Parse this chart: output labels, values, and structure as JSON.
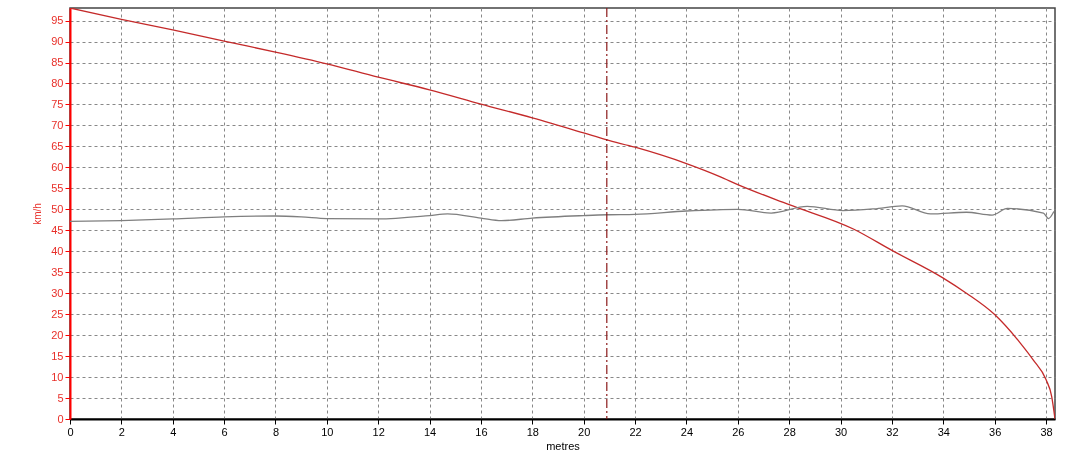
{
  "chart_data": {
    "type": "line",
    "xlabel": "metres",
    "ylabel": "km/h",
    "xlim": [
      0,
      38.35
    ],
    "ylim": [
      0,
      98
    ],
    "xticks": [
      0,
      2,
      4,
      6,
      8,
      10,
      12,
      14,
      16,
      18,
      20,
      22,
      24,
      26,
      28,
      30,
      32,
      34,
      36,
      38
    ],
    "yticks": [
      0,
      5,
      10,
      15,
      20,
      25,
      30,
      35,
      40,
      45,
      50,
      55,
      60,
      65,
      70,
      75,
      80,
      85,
      90,
      95
    ],
    "grid": true,
    "series": [
      {
        "color": "#c42a2a",
        "x": [
          0,
          2,
          4,
          6,
          8,
          10,
          12,
          14,
          16,
          18,
          20,
          20.87,
          22,
          24,
          25.3,
          26,
          28,
          30.5,
          32,
          34,
          34.9,
          36,
          37,
          37.5,
          38,
          38.22,
          38.35
        ],
        "values": [
          98,
          95.3,
          92.8,
          90.1,
          87.5,
          84.7,
          81.5,
          78.5,
          75.1,
          71.8,
          68.2,
          66.6,
          64.8,
          60.9,
          57.8,
          55.9,
          51.1,
          45.3,
          40.2,
          33.6,
          30,
          24.9,
          18.1,
          14.1,
          9.4,
          5.4,
          0
        ]
      },
      {
        "color": "#7f7f7f",
        "x": [
          0,
          2,
          4,
          6,
          8,
          9,
          10,
          12,
          14,
          14.7,
          16,
          16.8,
          18,
          20,
          20.9,
          22,
          24,
          26,
          27.3,
          28.7,
          30.1,
          31.3,
          32.4,
          33.5,
          34.9,
          35.9,
          36.5,
          37.9,
          38.1,
          38.3
        ],
        "values": [
          47.1,
          47.3,
          47.7,
          48.2,
          48.4,
          48.2,
          47.8,
          47.7,
          48.5,
          48.9,
          47.9,
          47.3,
          47.9,
          48.5,
          48.7,
          48.8,
          49.6,
          50,
          49.1,
          50.7,
          49.7,
          50.1,
          50.8,
          48.9,
          49.3,
          48.6,
          50.2,
          49.1,
          47.8,
          49.4
        ]
      }
    ],
    "ref_lines": [
      {
        "axis": "x",
        "value": 20.9,
        "color": "#8b1a1a",
        "line_style": "dashed"
      }
    ]
  }
}
